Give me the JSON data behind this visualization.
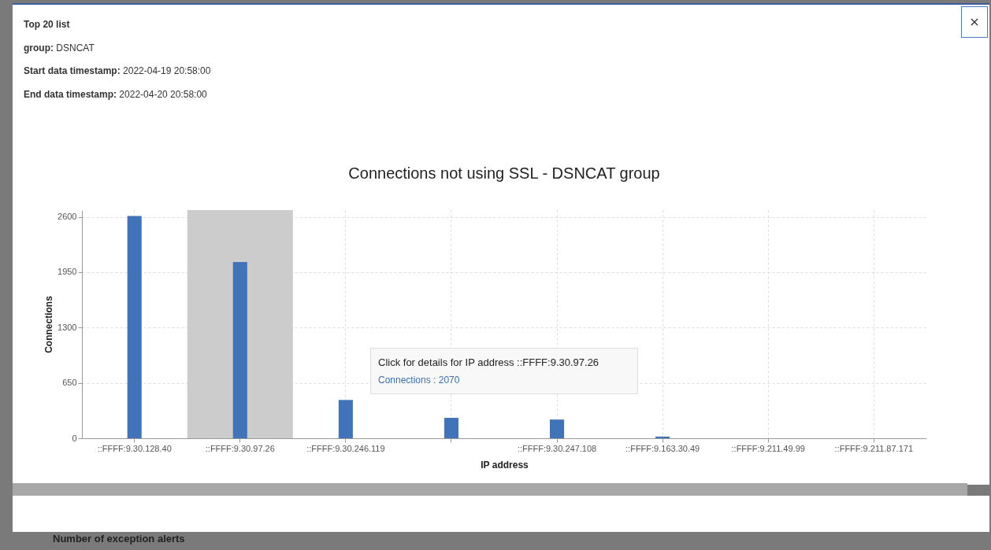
{
  "chart_data": {
    "type": "bar",
    "title": "Connections not using SSL - DSNCAT group",
    "xlabel": "IP address",
    "ylabel": "Connections",
    "categories": [
      "::FFFF:9.30.128.40",
      "::FFFF:9.30.97.26",
      "::FFFF:9.30.246.119",
      null,
      "::FFFF:9.30.247.108",
      "::FFFF:9.163.30.49",
      "::FFFF:9.211.49.99",
      "::FFFF:9.211.87.171"
    ],
    "values": [
      2610,
      2070,
      450,
      240,
      220,
      20,
      0,
      0
    ],
    "color": "#4173b8",
    "ylim": [
      0,
      2680
    ],
    "yticks": [
      0,
      650,
      1300,
      1950,
      2600
    ],
    "grid": true,
    "bands": [
      {
        "axis": "x",
        "from": "::FFFF:9.30.97.26",
        "to": "::FFFF:9.30.97.26",
        "color": "#cccccc"
      }
    ],
    "annotations": [
      "Top 20 list",
      "group: DSNCAT",
      "Start data timestamp: 2022-04-19 20:58:00",
      "End data timestamp: 2022-04-20 20:58:00",
      "Click for details for IP address ::FFFF:9.30.97.26",
      "Connections : 2070",
      "Number of exception alerts"
    ]
  }
}
